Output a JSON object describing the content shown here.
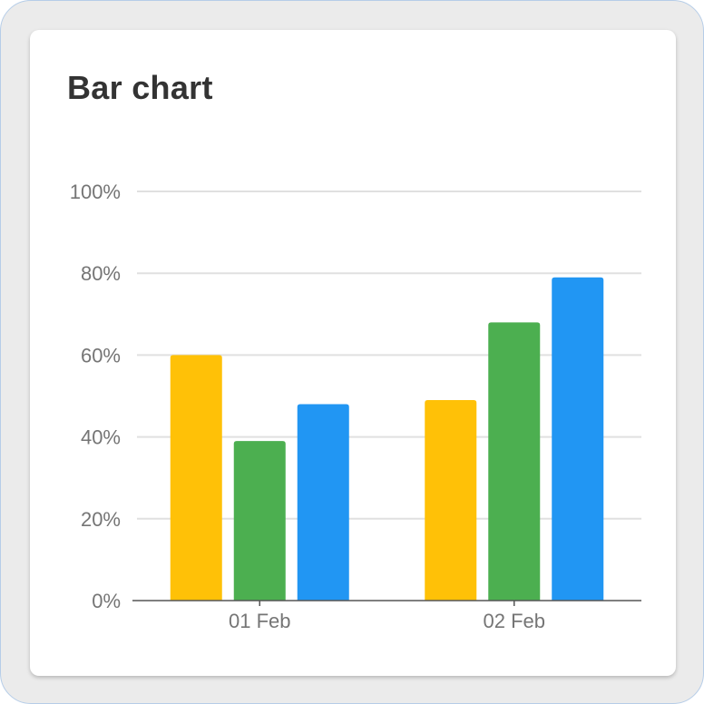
{
  "card": {
    "title": "Bar chart"
  },
  "chart_data": {
    "type": "bar",
    "title": "Bar chart",
    "categories": [
      "01 Feb",
      "02 Feb"
    ],
    "series": [
      {
        "color": "#FFC107",
        "values": [
          60,
          49
        ]
      },
      {
        "color": "#4CAF50",
        "values": [
          39,
          68
        ]
      },
      {
        "color": "#2196F3",
        "values": [
          48,
          79
        ]
      }
    ],
    "ylim": [
      0,
      100
    ],
    "yticks": [
      "0%",
      "20%",
      "40%",
      "60%",
      "80%",
      "100%"
    ],
    "ytick_values": [
      0,
      20,
      40,
      60,
      80,
      100
    ],
    "grid": true,
    "legend": "none"
  }
}
